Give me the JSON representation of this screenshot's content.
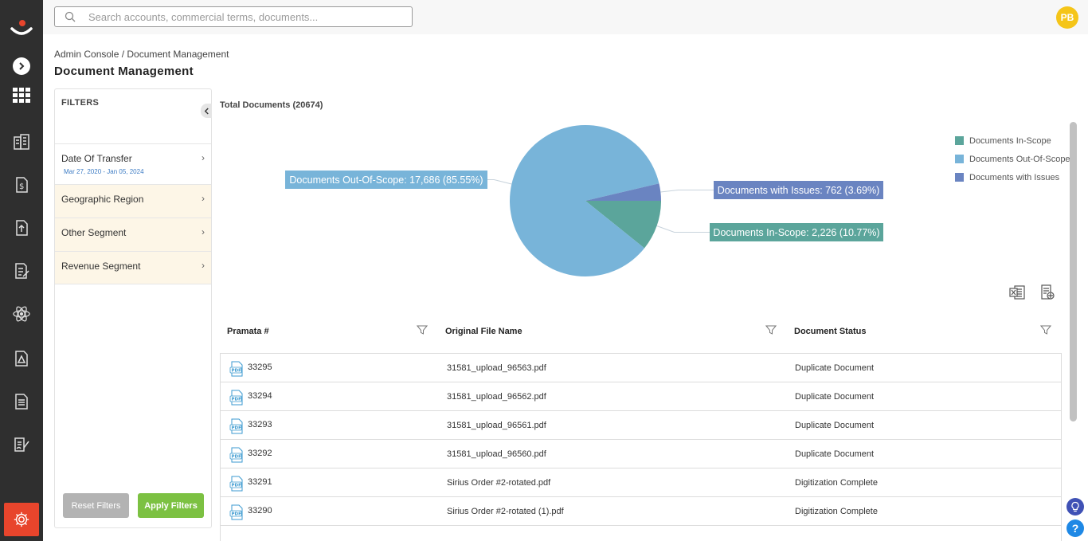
{
  "search": {
    "placeholder": "Search accounts, commercial terms, documents..."
  },
  "user": {
    "initials": "PB"
  },
  "breadcrumb": "Admin Console / Document Management",
  "page_title": "Document Management",
  "filters": {
    "title": "FILTERS",
    "items": [
      {
        "label": "Date Of Transfer",
        "sub": "Mar 27, 2020 - Jan 05, 2024"
      },
      {
        "label": "Geographic Region"
      },
      {
        "label": "Other Segment"
      },
      {
        "label": "Revenue Segment"
      }
    ],
    "reset_label": "Reset Filters",
    "apply_label": "Apply Filters"
  },
  "colors": {
    "in_scope": "#5ba59b",
    "out_of_scope": "#78b4d9",
    "issues": "#6a84c1"
  },
  "chart_data": {
    "type": "pie",
    "title": "Total Documents (20674)",
    "slices": [
      {
        "name": "Documents In-Scope",
        "value": 2226,
        "percent": 10.77,
        "label": "Documents In-Scope: 2,226 (10.77%)",
        "color": "#5ba59b"
      },
      {
        "name": "Documents Out-Of-Scope",
        "value": 17686,
        "percent": 85.55,
        "label": "Documents Out-Of-Scope: 17,686 (85.55%)",
        "color": "#78b4d9"
      },
      {
        "name": "Documents with Issues",
        "value": 762,
        "percent": 3.69,
        "label": "Documents with Issues: 762 (3.69%)",
        "color": "#6a84c1"
      }
    ],
    "legend": [
      "Documents In-Scope",
      "Documents Out-Of-Scope",
      "Documents with Issues"
    ],
    "legend_position": "right"
  },
  "table": {
    "columns": [
      "Pramata #",
      "Original File Name",
      "Document Status"
    ],
    "rows": [
      {
        "id": "33295",
        "file": "31581_upload_96563.pdf",
        "status": "Duplicate Document"
      },
      {
        "id": "33294",
        "file": "31581_upload_96562.pdf",
        "status": "Duplicate Document"
      },
      {
        "id": "33293",
        "file": "31581_upload_96561.pdf",
        "status": "Duplicate Document"
      },
      {
        "id": "33292",
        "file": "31581_upload_96560.pdf",
        "status": "Duplicate Document"
      },
      {
        "id": "33291",
        "file": "Sirius Order #2-rotated.pdf",
        "status": "Digitization Complete"
      },
      {
        "id": "33290",
        "file": "Sirius Order #2-rotated (1).pdf",
        "status": "Digitization Complete"
      }
    ]
  }
}
